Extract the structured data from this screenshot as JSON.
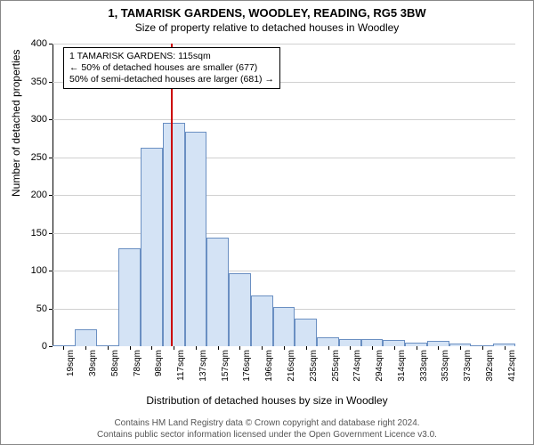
{
  "title": "1, TAMARISK GARDENS, WOODLEY, READING, RG5 3BW",
  "subtitle": "Size of property relative to detached houses in Woodley",
  "ylabel": "Number of detached properties",
  "xlabel": "Distribution of detached houses by size in Woodley",
  "footer_line1": "Contains HM Land Registry data © Crown copyright and database right 2024.",
  "footer_line2": "Contains public sector information licensed under the Open Government Licence v3.0.",
  "annotation": {
    "line1": "1 TAMARISK GARDENS: 115sqm",
    "line2": "← 50% of detached houses are smaller (677)",
    "line3": "50% of semi-detached houses are larger (681) →"
  },
  "chart": {
    "type": "histogram",
    "ylim": [
      0,
      400
    ],
    "yticks": [
      0,
      50,
      100,
      150,
      200,
      250,
      300,
      350,
      400
    ],
    "bar_fill": "#d4e3f5",
    "bar_stroke": "#6a8fc2",
    "grid_color": "#d0d0d0",
    "background_color": "#ffffff",
    "marker_value_sqm": 115,
    "marker_color": "#cc0000",
    "x_categories": [
      "19sqm",
      "39sqm",
      "58sqm",
      "78sqm",
      "98sqm",
      "117sqm",
      "137sqm",
      "157sqm",
      "176sqm",
      "196sqm",
      "216sqm",
      "235sqm",
      "255sqm",
      "274sqm",
      "294sqm",
      "314sqm",
      "333sqm",
      "353sqm",
      "373sqm",
      "392sqm",
      "412sqm"
    ],
    "x_numeric": [
      19,
      39,
      58,
      78,
      98,
      117,
      137,
      157,
      176,
      196,
      216,
      235,
      255,
      274,
      294,
      314,
      333,
      353,
      373,
      392,
      412
    ],
    "values": [
      0,
      22,
      0,
      130,
      262,
      295,
      284,
      144,
      97,
      67,
      52,
      36,
      12,
      9,
      10,
      8,
      5,
      7,
      3,
      0,
      3
    ]
  }
}
